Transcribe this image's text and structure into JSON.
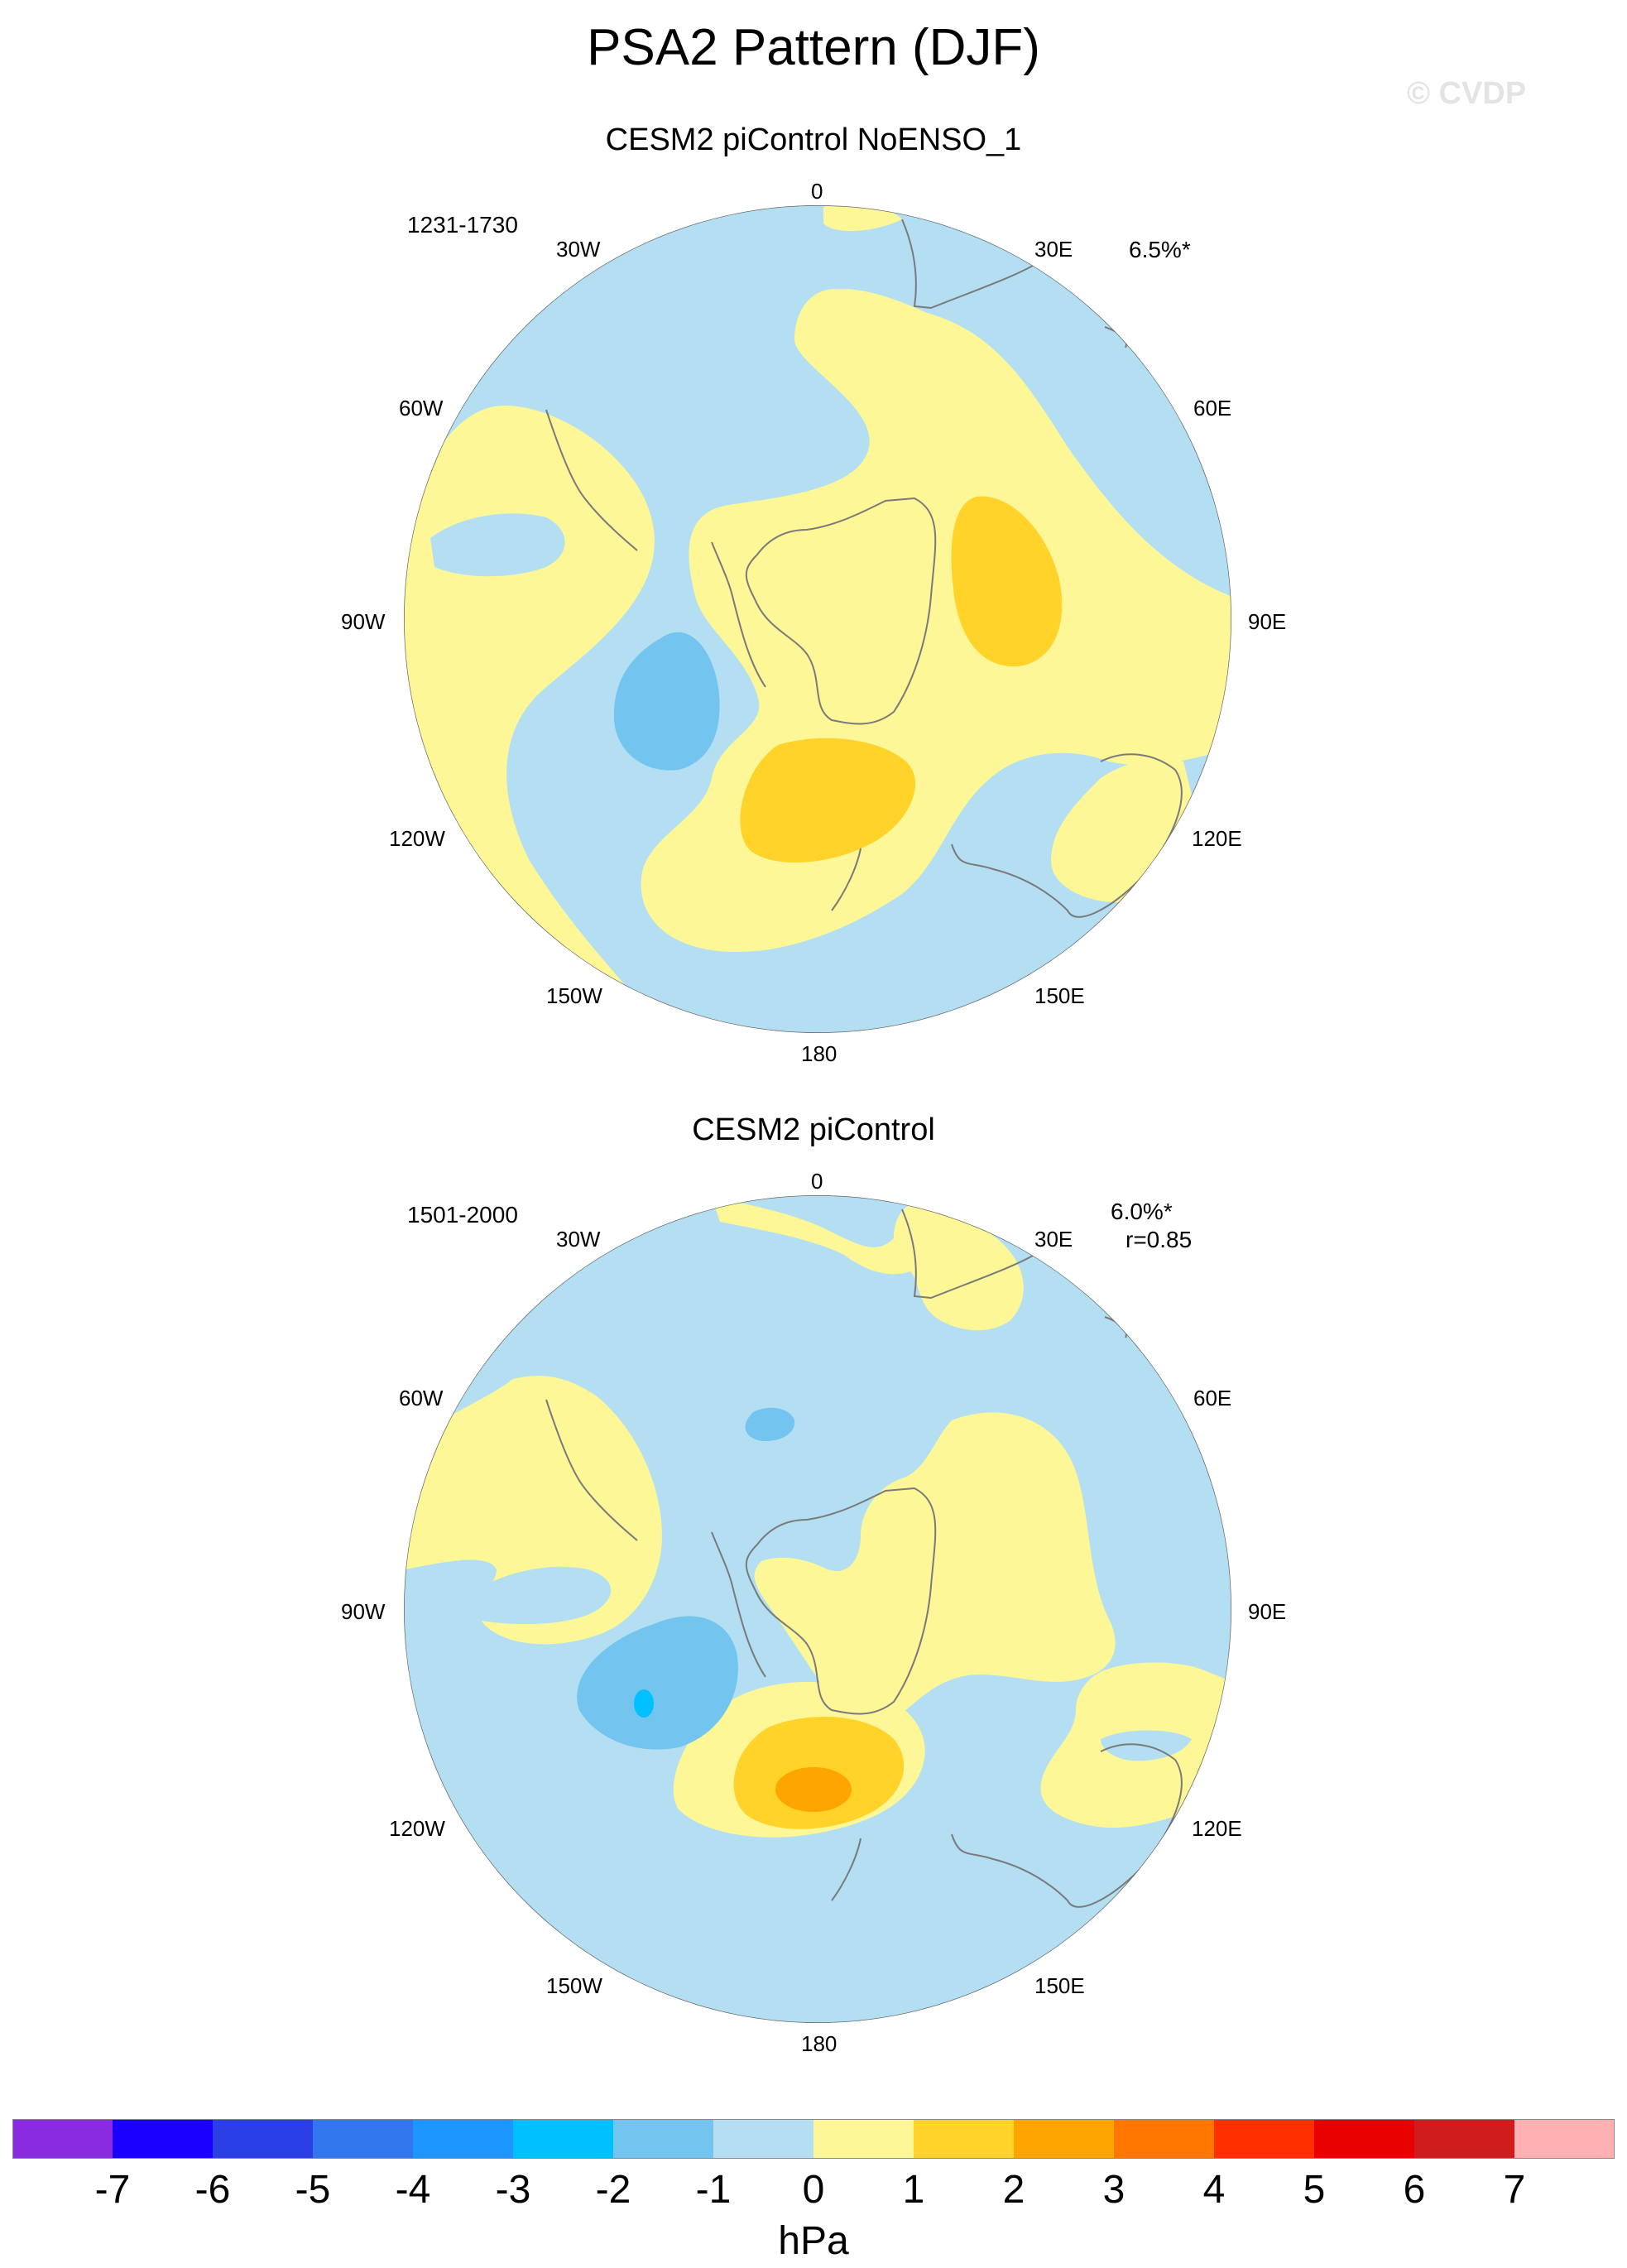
{
  "title": "PSA2 Pattern (DJF)",
  "watermark": "© CVDP",
  "units": "hPa",
  "colors": {
    "neg7": "#8a2be2",
    "neg6": "#1a00ff",
    "neg5": "#2a3fe6",
    "neg4": "#3377ee",
    "neg3": "#1e96ff",
    "neg2": "#00c0ff",
    "neg1": "#73c4ee",
    "zero_neg": "#b4dff2",
    "zero_pos": "#fdf797",
    "pos1": "#ffd32a",
    "pos2": "#ffa500",
    "pos3": "#ff7600",
    "pos4": "#ff2f00",
    "pos5": "#e80000",
    "pos6": "#d01c1c",
    "pos7": "#ffb0b0",
    "coastline": "#7a7a7a",
    "border": "#666666"
  },
  "colorbar": {
    "ticks": [
      "-7",
      "-6",
      "-5",
      "-4",
      "-3",
      "-2",
      "-1",
      "0",
      "1",
      "2",
      "3",
      "4",
      "5",
      "6",
      "7"
    ],
    "fills": [
      "#8a2be2",
      "#1a00ff",
      "#2a3fe6",
      "#3377ee",
      "#1e96ff",
      "#00c0ff",
      "#73c4ee",
      "#b4dff2",
      "#fdf797",
      "#ffd32a",
      "#ffa500",
      "#ff7600",
      "#ff2f00",
      "#e80000",
      "#d01c1c",
      "#ffb0b0"
    ]
  },
  "panels": [
    {
      "title": "CESM2 piControl NoENSO_1",
      "years": "1231-1730",
      "pct": "6.5%*",
      "corr": "",
      "lon_labels": {
        "l0": "0",
        "l30w": "30W",
        "l30e": "30E",
        "l60w": "60W",
        "l60e": "60E",
        "l90w": "90W",
        "l90e": "90E",
        "l120w": "120W",
        "l120e": "120E",
        "l150w": "150W",
        "l150e": "150E",
        "l180": "180"
      }
    },
    {
      "title": "CESM2 piControl",
      "years": "1501-2000",
      "pct": "6.0%*",
      "corr": "r=0.85",
      "lon_labels": {
        "l0": "0",
        "l30w": "30W",
        "l30e": "30E",
        "l60w": "60W",
        "l60e": "60E",
        "l90w": "90W",
        "l90e": "90E",
        "l120w": "120W",
        "l120e": "120E",
        "l150w": "150W",
        "l150e": "150E",
        "l180": "180"
      }
    }
  ]
}
